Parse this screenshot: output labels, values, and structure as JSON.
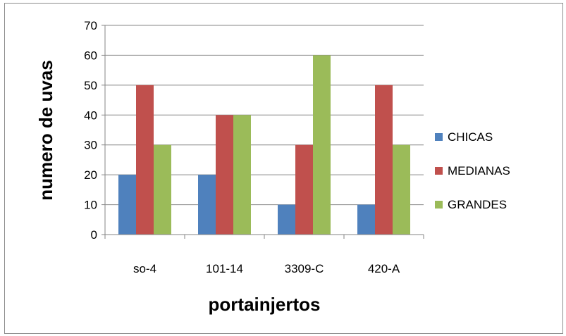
{
  "chart_data": {
    "type": "bar",
    "title": "",
    "xlabel": "portainjertos",
    "ylabel": "numero de uvas",
    "categories": [
      "so-4",
      "101-14",
      "3309-C",
      "420-A"
    ],
    "series": [
      {
        "name": "CHICAS",
        "color": "#4f81bd",
        "values": [
          20,
          20,
          10,
          10
        ]
      },
      {
        "name": "MEDIANAS",
        "color": "#c0504d",
        "values": [
          50,
          40,
          30,
          50
        ]
      },
      {
        "name": "GRANDES",
        "color": "#9bbb59",
        "values": [
          30,
          40,
          60,
          30
        ]
      }
    ],
    "ylim": [
      0,
      70
    ],
    "yticks": [
      0,
      10,
      20,
      30,
      40,
      50,
      60,
      70
    ],
    "grid": true,
    "legend": "right"
  }
}
